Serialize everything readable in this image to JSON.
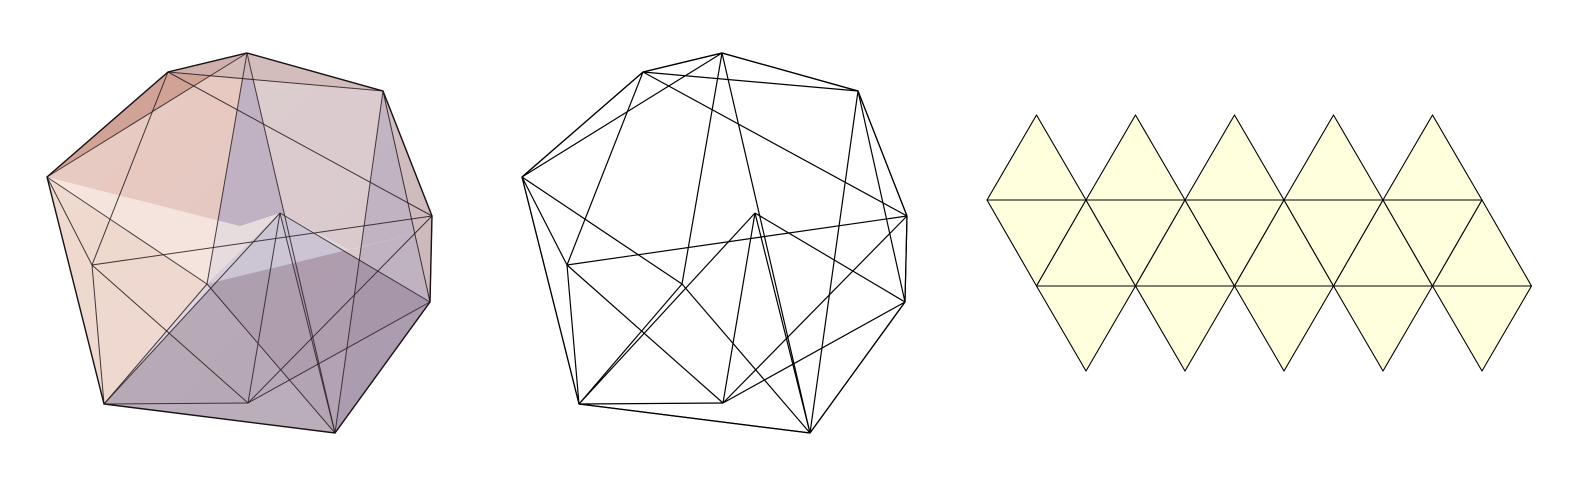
{
  "figure": {
    "panels": [
      {
        "name": "shaded-icosahedron",
        "kind": "shaded-solid"
      },
      {
        "name": "wireframe-icosahedron",
        "kind": "wireframe"
      },
      {
        "name": "icosahedron-net",
        "kind": "net"
      }
    ]
  },
  "solid": {
    "vertex_count": 12,
    "edges": [
      [
        0,
        1
      ],
      [
        0,
        2
      ],
      [
        0,
        3
      ],
      [
        0,
        4
      ],
      [
        0,
        9
      ],
      [
        1,
        2
      ],
      [
        1,
        3
      ],
      [
        1,
        5
      ],
      [
        1,
        6
      ],
      [
        2,
        4
      ],
      [
        2,
        5
      ],
      [
        3,
        6
      ],
      [
        3,
        8
      ],
      [
        3,
        9
      ],
      [
        4,
        7
      ],
      [
        4,
        9
      ],
      [
        5,
        6
      ],
      [
        5,
        7
      ],
      [
        5,
        10
      ],
      [
        6,
        8
      ],
      [
        6,
        10
      ],
      [
        7,
        9
      ],
      [
        7,
        10
      ],
      [
        7,
        11
      ],
      [
        8,
        9
      ],
      [
        8,
        10
      ],
      [
        8,
        11
      ],
      [
        9,
        11
      ],
      [
        10,
        11
      ],
      [
        2,
        7
      ]
    ],
    "front_faces": [
      [
        0,
        1,
        2
      ],
      [
        0,
        2,
        4
      ],
      [
        2,
        4,
        7
      ],
      [
        4,
        7,
        9
      ],
      [
        0,
        4,
        9
      ],
      [
        0,
        3,
        9
      ],
      [
        3,
        8,
        9
      ],
      [
        8,
        9,
        11
      ],
      [
        7,
        9,
        11
      ],
      [
        0,
        1,
        3
      ]
    ],
    "back_faces": [
      [
        1,
        2,
        5
      ],
      [
        2,
        5,
        7
      ],
      [
        5,
        7,
        10
      ],
      [
        7,
        10,
        11
      ],
      [
        8,
        10,
        11
      ],
      [
        6,
        8,
        10
      ],
      [
        5,
        6,
        10
      ],
      [
        1,
        5,
        6
      ],
      [
        1,
        3,
        6
      ],
      [
        3,
        6,
        8
      ]
    ],
    "colors": {
      "edge": "#000000",
      "warm": "#c8896f",
      "cool": "#8b86b3",
      "highlight": "#fff6ee"
    }
  },
  "net": {
    "columns": 5,
    "fill": "#ffffdd",
    "stroke": "#000000"
  }
}
